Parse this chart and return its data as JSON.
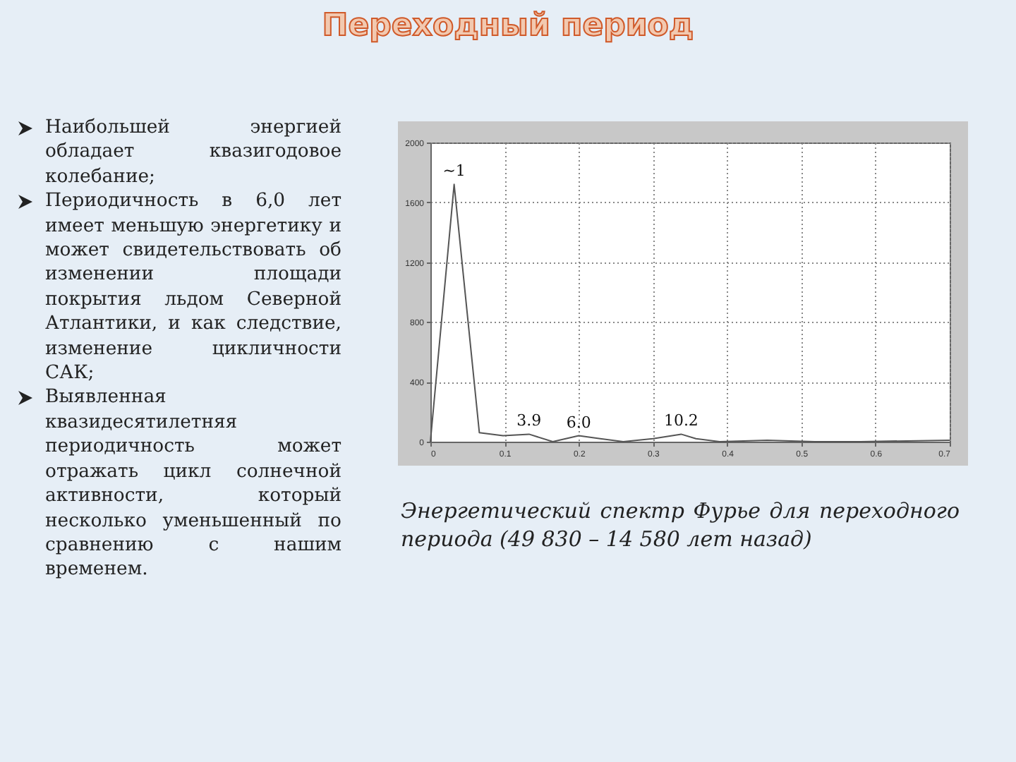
{
  "chart_data": {
    "type": "line",
    "title": "Переходный период",
    "x": [
      0,
      0.032,
      0.066,
      0.098,
      0.133,
      0.165,
      0.2,
      0.229,
      0.26,
      0.3,
      0.338,
      0.358,
      0.39,
      0.454,
      0.518,
      0.58,
      0.7
    ],
    "series": [
      {
        "color": "#555555",
        "values": [
          0,
          1720,
          60,
          40,
          50,
          0,
          40,
          20,
          0,
          20,
          50,
          20,
          0,
          10,
          0,
          0,
          10
        ]
      }
    ],
    "xlim": [
      0,
      0.7
    ],
    "xticks": [
      0,
      0.1,
      0.2,
      0.3,
      0.4,
      0.5,
      0.6,
      0.7
    ],
    "ylim": [
      0,
      2000
    ],
    "yticks": [
      0,
      400,
      800,
      1200,
      1600,
      2000
    ],
    "grid": true,
    "marker": "none",
    "annotations": [
      "Наибольшей энергией обладает квазигодовое колебание;",
      "Периодичность в 6,0 лет имеет меньшую энергетику и может свидетельствовать об изменении площади покрытия льдом Северной Атлантики, и как следствие, изменение цикличности САК;",
      "Выявленная квазидесятилетняя периодичность может отражать цикл солнечной активности, который несколько уменьшенный по сравнению с нашим временем.",
      {
        "text": "~1",
        "x": 0.032,
        "y": 1720
      },
      {
        "text": "3.9",
        "x": 0.133,
        "y": 50
      },
      {
        "text": "6.0",
        "x": 0.2,
        "y": 40
      },
      {
        "text": "10.2",
        "x": 0.338,
        "y": 50
      },
      "Энергетический спектр Фурье для переходного периода (49 830 – 14 580 лет назад)"
    ]
  }
}
